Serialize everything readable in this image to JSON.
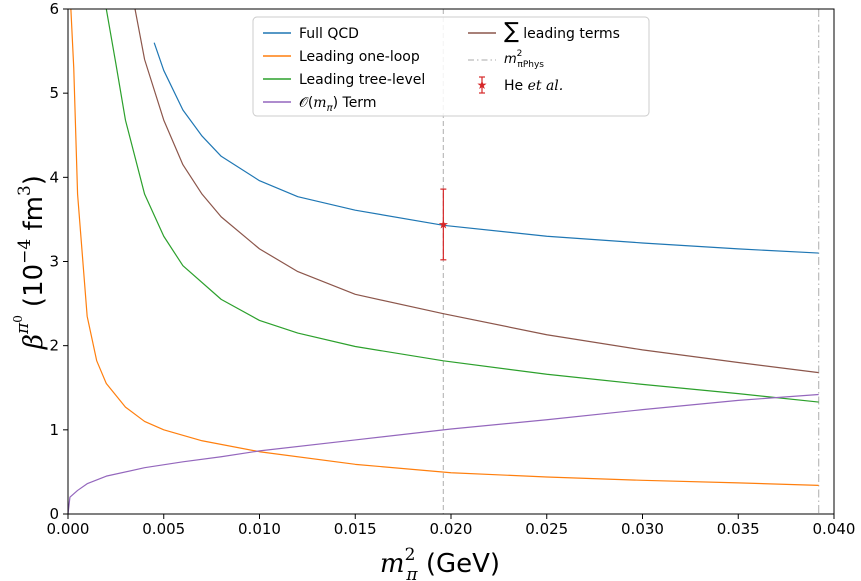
{
  "chart_data": {
    "type": "line",
    "xlabel_math": "m",
    "xlabel_sub": "π",
    "xlabel_sup": "2",
    "xlabel_unit": " (GeV)",
    "ylabel_math": "β",
    "ylabel_sup": "π",
    "ylabel_sup2": "0",
    "ylabel_unit_a": "(10",
    "ylabel_unit_exp": "−4",
    "ylabel_unit_b": " fm",
    "ylabel_unit_exp2": "3",
    "ylabel_unit_c": ")",
    "xlim": [
      0.0,
      0.04
    ],
    "ylim": [
      0,
      6
    ],
    "x_ticks": [
      0.0,
      0.005,
      0.01,
      0.015,
      0.02,
      0.025,
      0.03,
      0.035,
      0.04
    ],
    "x_tick_labels": [
      "0.000",
      "0.005",
      "0.010",
      "0.015",
      "0.020",
      "0.025",
      "0.030",
      "0.035",
      "0.040"
    ],
    "y_ticks": [
      0,
      1,
      2,
      3,
      4,
      5,
      6
    ],
    "y_tick_labels": [
      "0",
      "1",
      "2",
      "3",
      "4",
      "5",
      "6"
    ],
    "x_max_curve": 0.0392,
    "vlines": [
      {
        "x": 0.0196,
        "color": "#bbbbbb",
        "style": "dashed"
      },
      {
        "x": 0.0392,
        "color": "#bbbbbb",
        "style": "dashdot"
      }
    ],
    "series": [
      {
        "name": "Full QCD",
        "color": "#1f77b4",
        "x": [
          0.0045,
          0.005,
          0.006,
          0.007,
          0.008,
          0.01,
          0.012,
          0.015,
          0.0196,
          0.025,
          0.03,
          0.035,
          0.0392
        ],
        "y": [
          5.6,
          5.27,
          4.8,
          4.49,
          4.25,
          3.96,
          3.77,
          3.61,
          3.43,
          3.3,
          3.22,
          3.15,
          3.1
        ]
      },
      {
        "name": "Leading one-loop",
        "color": "#ff7f0e",
        "x": [
          0.00015,
          0.0003,
          0.0005,
          0.001,
          0.0015,
          0.002,
          0.003,
          0.004,
          0.005,
          0.007,
          0.01,
          0.015,
          0.02,
          0.025,
          0.03,
          0.035,
          0.0392
        ],
        "y": [
          6.0,
          5.3,
          3.8,
          2.35,
          1.82,
          1.55,
          1.27,
          1.1,
          1.0,
          0.87,
          0.74,
          0.59,
          0.49,
          0.44,
          0.4,
          0.37,
          0.34
        ]
      },
      {
        "name": "Leading tree-level",
        "color": "#2ca02c",
        "x": [
          0.002,
          0.0025,
          0.003,
          0.004,
          0.005,
          0.006,
          0.008,
          0.01,
          0.012,
          0.015,
          0.0196,
          0.025,
          0.03,
          0.035,
          0.0392
        ],
        "y": [
          6.0,
          5.35,
          4.68,
          3.8,
          3.3,
          2.95,
          2.55,
          2.3,
          2.15,
          1.99,
          1.82,
          1.66,
          1.54,
          1.43,
          1.33
        ]
      },
      {
        "name": "O(mπ) Term",
        "color": "#9467bd",
        "x": [
          0.0,
          0.0001,
          0.0005,
          0.001,
          0.002,
          0.004,
          0.006,
          0.008,
          0.01,
          0.015,
          0.02,
          0.025,
          0.03,
          0.035,
          0.0392
        ],
        "y": [
          0.0,
          0.2,
          0.28,
          0.36,
          0.45,
          0.55,
          0.62,
          0.68,
          0.75,
          0.88,
          1.01,
          1.12,
          1.24,
          1.35,
          1.42
        ]
      },
      {
        "name": "∑ leading terms",
        "color": "#8c564b",
        "x": [
          0.0035,
          0.004,
          0.005,
          0.006,
          0.007,
          0.008,
          0.01,
          0.012,
          0.015,
          0.0196,
          0.025,
          0.03,
          0.035,
          0.0392
        ],
        "y": [
          6.0,
          5.4,
          4.68,
          4.15,
          3.8,
          3.53,
          3.15,
          2.88,
          2.61,
          2.38,
          2.13,
          1.95,
          1.8,
          1.68
        ]
      }
    ],
    "points": [
      {
        "name": "He et al.",
        "x": 0.0196,
        "y": 3.44,
        "yerr": 0.42,
        "color": "#d62728"
      }
    ],
    "legend": {
      "placement": "top-center",
      "col1": [
        {
          "label": "Full QCD",
          "color": "#1f77b4",
          "kind": "line"
        },
        {
          "label": "Leading one-loop",
          "color": "#ff7f0e",
          "kind": "line"
        },
        {
          "label": "Leading tree-level",
          "color": "#2ca02c",
          "kind": "line"
        },
        {
          "label_pre": "𝒪(",
          "label_math": "m",
          "label_sub": "π",
          "label_post": ") Term",
          "color": "#9467bd",
          "kind": "line"
        }
      ],
      "col2": [
        {
          "label_sym": "∑",
          "label": " leading terms",
          "color": "#8c564b",
          "kind": "line"
        },
        {
          "label_math": "m",
          "label_sup": "2",
          "label_sub": "πPhys",
          "color": "#bbbbbb",
          "kind": "dashdot"
        },
        {
          "label": "He ",
          "label_italic": "et al.",
          "color": "#d62728",
          "kind": "errorpoint"
        }
      ]
    }
  }
}
